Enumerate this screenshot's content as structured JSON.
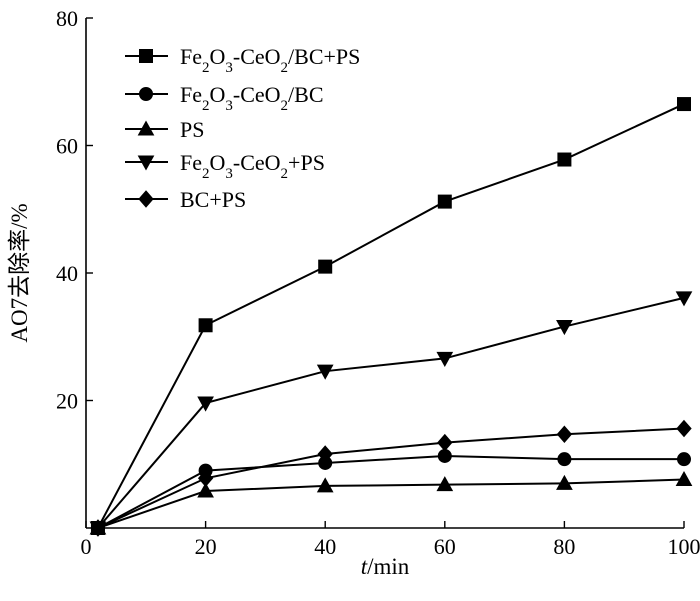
{
  "chart_data": {
    "type": "line",
    "xlabel_italic": "t",
    "xlabel_rest": "/min",
    "ylabel": "AO7去除率/%",
    "xlim": [
      0,
      100
    ],
    "ylim": [
      0,
      80
    ],
    "xticks": [
      0,
      20,
      40,
      60,
      80,
      100
    ],
    "yticks": [
      20,
      40,
      60,
      80
    ],
    "grid": false,
    "legend_position": "top-left",
    "line_color": "#000000",
    "series": [
      {
        "name": "Fe2O3-CeO2/BC+PS",
        "marker": "square",
        "x": [
          2,
          20,
          40,
          60,
          80,
          100
        ],
        "y": [
          0,
          31.8,
          41.0,
          51.2,
          57.8,
          66.5
        ]
      },
      {
        "name": "Fe2O3-CeO2/BC",
        "marker": "circle",
        "x": [
          2,
          20,
          40,
          60,
          80,
          100
        ],
        "y": [
          0,
          9.0,
          10.2,
          11.3,
          10.8,
          10.8
        ]
      },
      {
        "name": "PS",
        "marker": "triangle-up",
        "x": [
          2,
          20,
          40,
          60,
          80,
          100
        ],
        "y": [
          0,
          5.8,
          6.6,
          6.8,
          7.0,
          7.6
        ]
      },
      {
        "name": "Fe2O3-CeO2+PS",
        "marker": "triangle-down",
        "x": [
          2,
          20,
          40,
          60,
          80,
          100
        ],
        "y": [
          0,
          19.6,
          24.6,
          26.6,
          31.6,
          36.1
        ]
      },
      {
        "name": "BC+PS",
        "marker": "diamond",
        "x": [
          2,
          20,
          40,
          60,
          80,
          100
        ],
        "y": [
          0,
          7.8,
          11.6,
          13.4,
          14.7,
          15.6
        ]
      }
    ]
  }
}
